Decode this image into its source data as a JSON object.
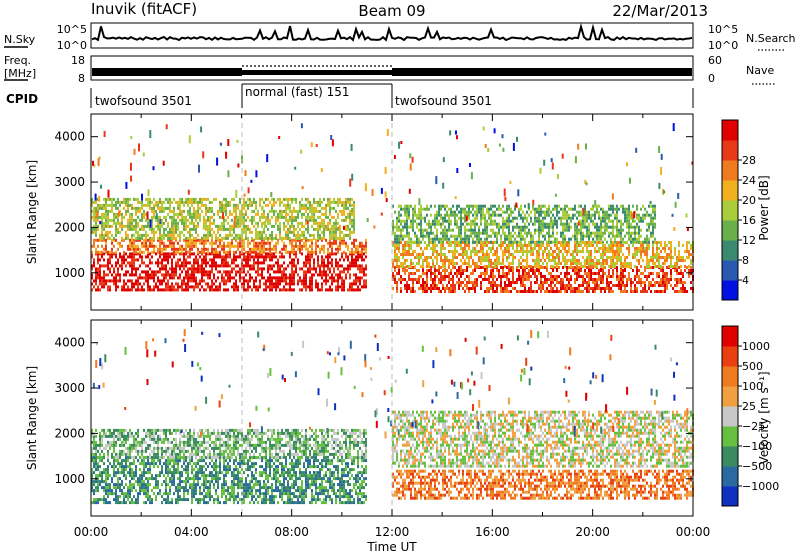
{
  "header": {
    "station": "Inuvik (fitACF)",
    "beam": "Beam 09",
    "date": "22/Mar/2013"
  },
  "status_panels": {
    "nsky_label": "N.Sky",
    "nsearch_label": "N.Search",
    "noise_ticks_left": [
      "10^5",
      "10^0"
    ],
    "noise_ticks_right": [
      "10^5",
      "10^0"
    ],
    "freq_label_1": "Freq.",
    "freq_label_2": "[MHz]",
    "freq_ticks": [
      "18",
      "8"
    ],
    "nave_label": "Nave",
    "nave_ticks": [
      "60",
      "0"
    ],
    "cpid_label": "CPID",
    "cpid_segments": [
      {
        "label": "twofsound 3501",
        "start_hour": 0,
        "end_hour": 6
      },
      {
        "label": "normal (fast) 151",
        "start_hour": 6,
        "end_hour": 12
      },
      {
        "label": "twofsound 3501",
        "start_hour": 12,
        "end_hour": 24
      }
    ]
  },
  "x_axis": {
    "title": "Time UT",
    "ticks": [
      "00:00",
      "04:00",
      "08:00",
      "12:00",
      "16:00",
      "20:00",
      "00:00"
    ]
  },
  "chart_data": [
    {
      "type": "heatmap",
      "name": "power",
      "xlabel": "Time UT",
      "ylabel": "Slant Range [km]",
      "xlim": [
        0,
        24
      ],
      "ylim": [
        180,
        4500
      ],
      "yticks": [
        1000,
        2000,
        3000,
        4000
      ],
      "colorbar": {
        "label": "Power [dB]",
        "ticks": [
          "4",
          "8",
          "12",
          "16",
          "20",
          "24",
          "28"
        ],
        "colors": [
          "#0010e0",
          "#2858b0",
          "#3a8a70",
          "#6ab04a",
          "#a8cc3a",
          "#f0b020",
          "#f07a20",
          "#e83818",
          "#e00000"
        ]
      },
      "bands": [
        {
          "x": [
            0.0,
            11.0
          ],
          "y": [
            620,
            1450
          ],
          "level": 8
        },
        {
          "x": [
            0.0,
            11.0
          ],
          "y": [
            1450,
            1750
          ],
          "level": 6
        },
        {
          "x": [
            0.0,
            10.5
          ],
          "y": [
            1750,
            2650
          ],
          "level": 4
        },
        {
          "x": [
            12.0,
            24.0
          ],
          "y": [
            600,
            1150
          ],
          "level": 7
        },
        {
          "x": [
            12.0,
            24.0
          ],
          "y": [
            1150,
            1700
          ],
          "level": 5
        },
        {
          "x": [
            12.0,
            22.5
          ],
          "y": [
            1700,
            2500
          ],
          "level": 3
        }
      ]
    },
    {
      "type": "heatmap",
      "name": "velocity",
      "xlabel": "Time UT",
      "ylabel": "Slant Range [km]",
      "xlim": [
        0,
        24
      ],
      "ylim": [
        180,
        4500
      ],
      "yticks": [
        1000,
        2000,
        3000,
        4000
      ],
      "colorbar": {
        "label": "Velocity [m s⁻¹]",
        "ticks": [
          "1000",
          "500",
          "100",
          "25",
          "−25",
          "−100",
          "−500",
          "−1000"
        ],
        "colors": [
          "#1030c0",
          "#2a6aa0",
          "#3a8c60",
          "#66c040",
          "#c8c8c8",
          "#f0a040",
          "#f07a20",
          "#e84010",
          "#e00000"
        ]
      },
      "bands": [
        {
          "x": [
            0.0,
            11.0
          ],
          "y": [
            500,
            1500
          ],
          "level": 2
        },
        {
          "x": [
            0.0,
            11.0
          ],
          "y": [
            1500,
            2100
          ],
          "level": 3
        },
        {
          "x": [
            12.0,
            24.0
          ],
          "y": [
            600,
            1200
          ],
          "level": 6
        },
        {
          "x": [
            12.0,
            24.0
          ],
          "y": [
            1300,
            2500
          ],
          "level": 4
        }
      ]
    }
  ]
}
